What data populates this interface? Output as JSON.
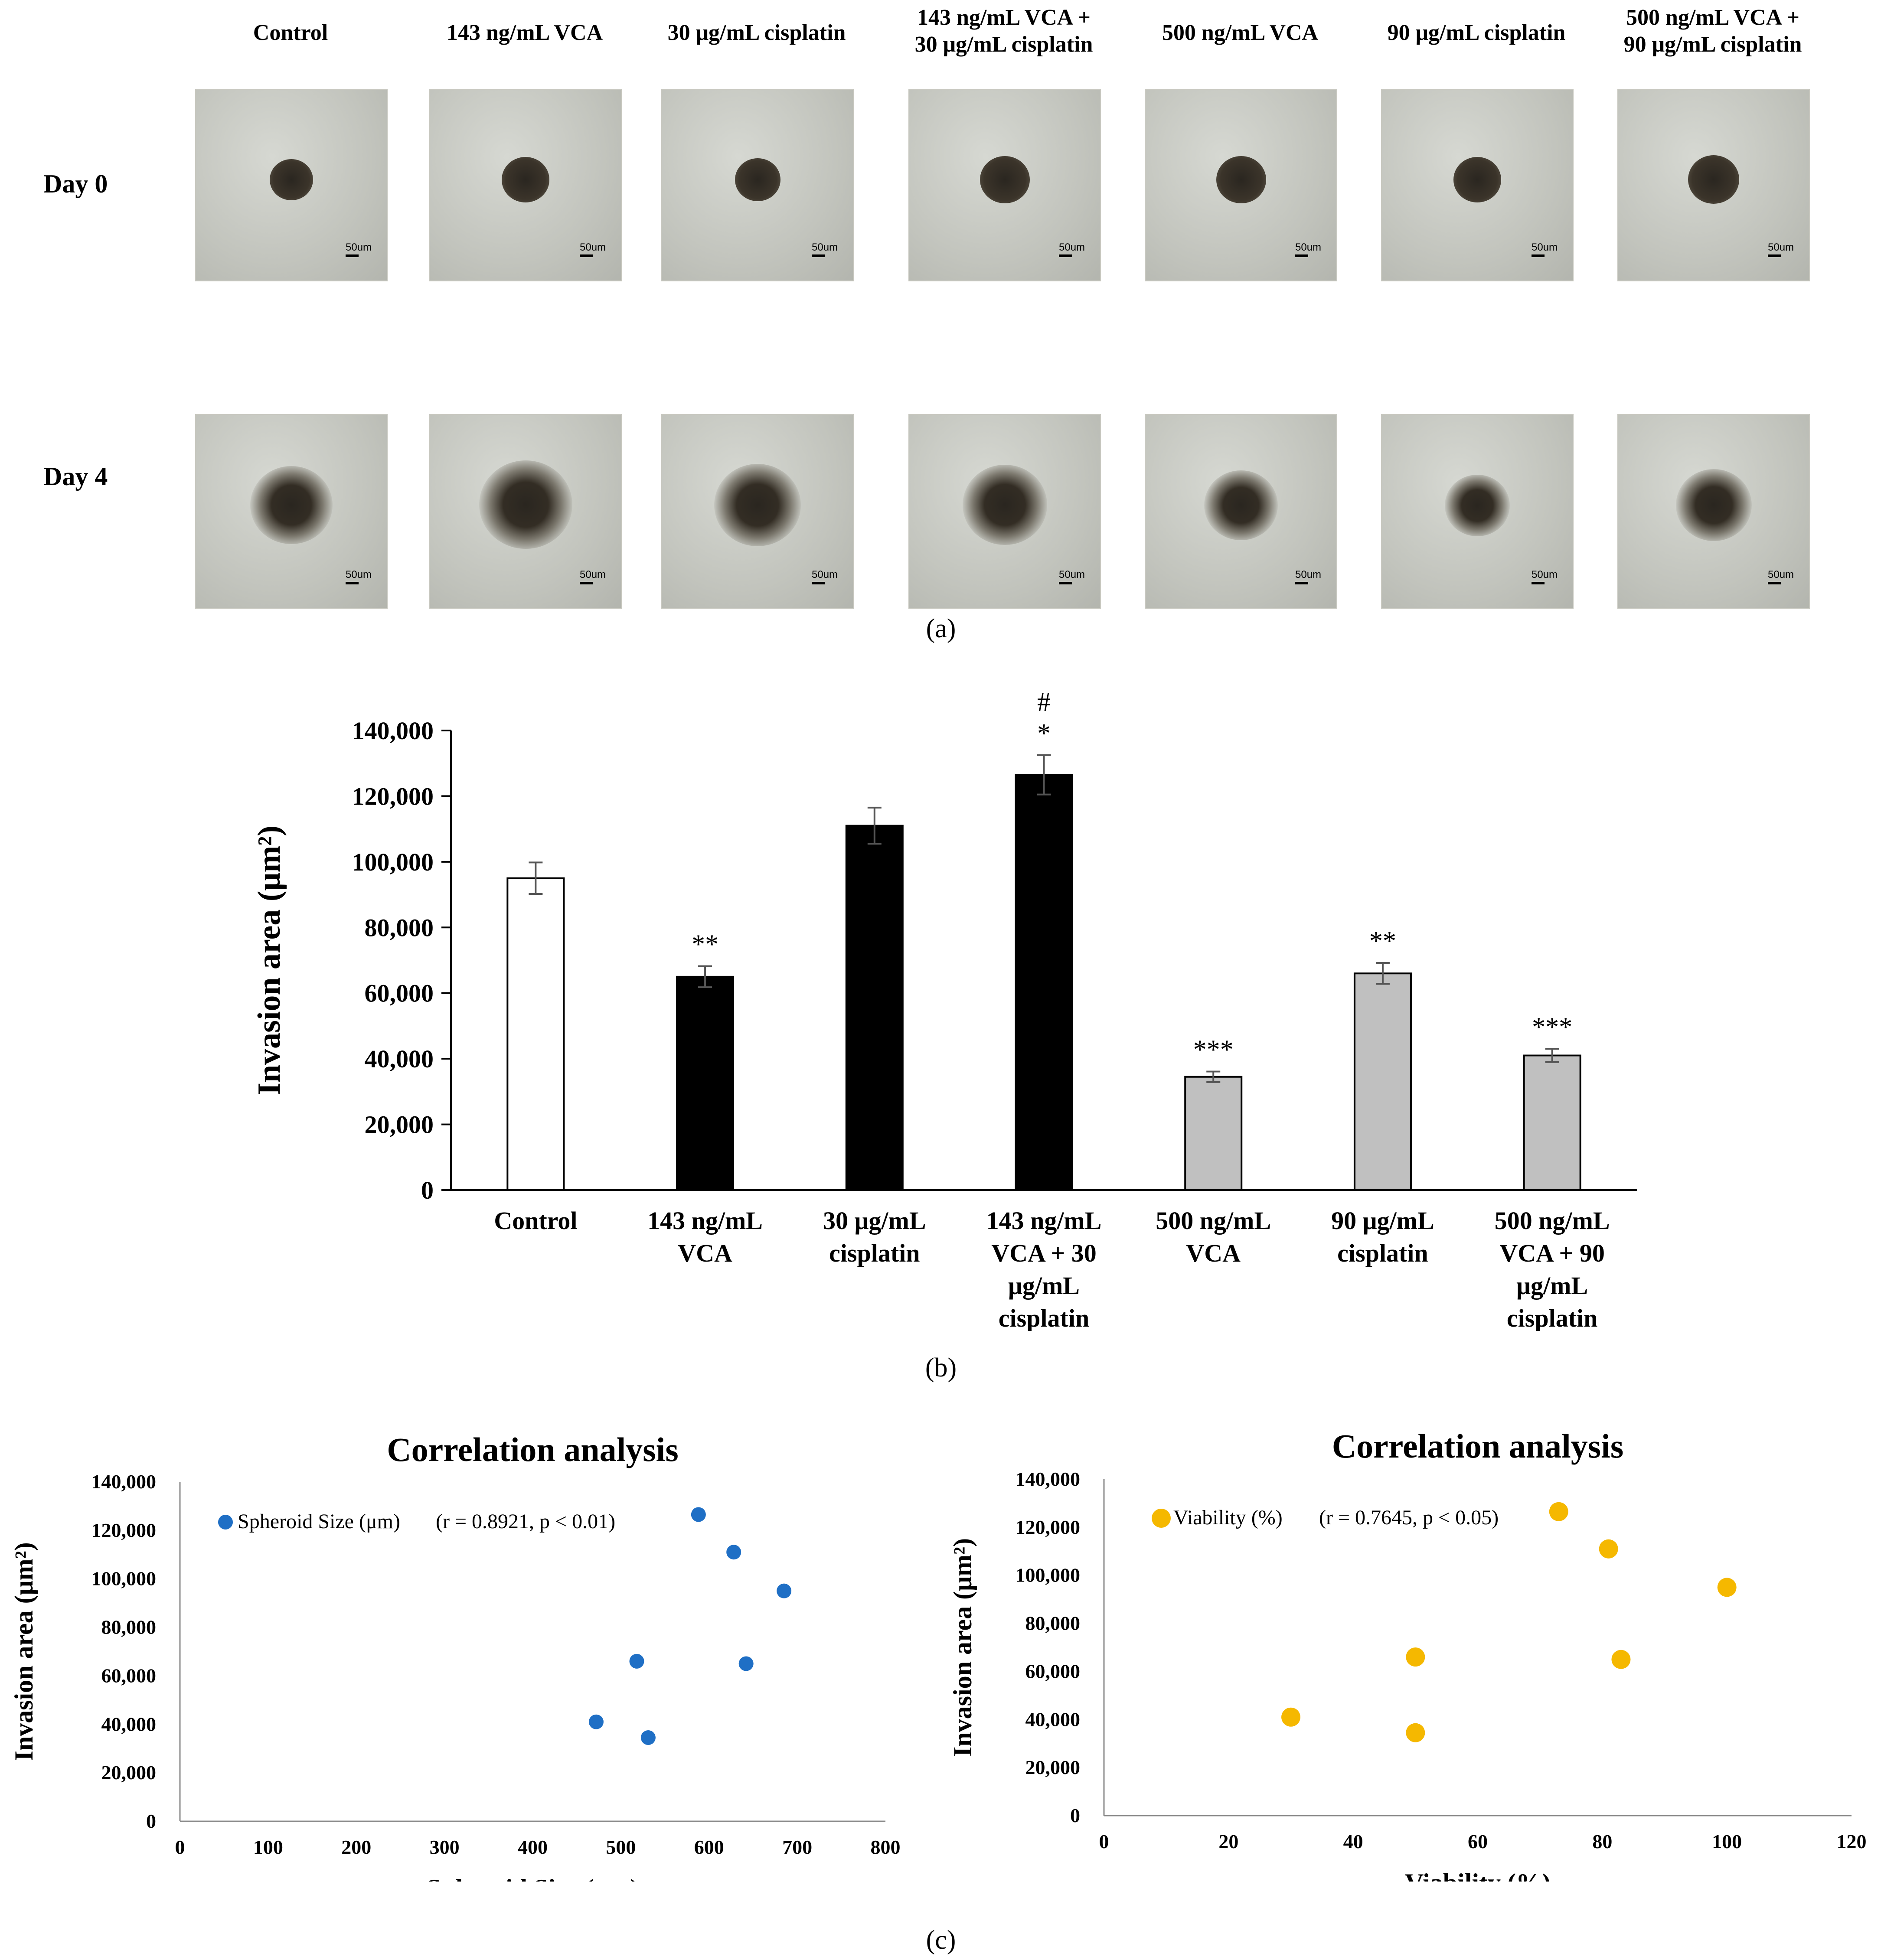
{
  "panel_a": {
    "columns": [
      "Control",
      "143 ng/mL VCA",
      "30 μg/mL cisplatin",
      "143 ng/mL VCA +\n30 μg/mL cisplatin",
      "500 ng/mL VCA",
      "90 μg/mL cisplatin",
      "500 ng/mL VCA +\n90 μg/mL cisplatin"
    ],
    "rows": [
      "Day 0",
      "Day 4"
    ],
    "scale_bar": "50um",
    "label": "(a)"
  },
  "panel_b_label": "(b)",
  "panel_c_label": "(c)",
  "chart_data": [
    {
      "type": "bar",
      "ylabel": "Invasion area (μm²)",
      "ylim": [
        0,
        140000
      ],
      "yticks": [
        "0",
        "20,000",
        "40,000",
        "60,000",
        "80,000",
        "100,000",
        "120,000",
        "140,000"
      ],
      "categories": [
        "Control",
        "143 ng/mL VCA",
        "30 μg/mL cisplatin",
        "143 ng/mL VCA + 30 μg/mL cisplatin",
        "500 ng/mL VCA",
        "90 μg/mL cisplatin",
        "500 ng/mL VCA + 90 μg/mL cisplatin"
      ],
      "values": [
        95000,
        65000,
        111000,
        126500,
        34500,
        66000,
        41000
      ],
      "errors": [
        4800,
        3200,
        5500,
        6000,
        1600,
        3200,
        2000
      ],
      "annotations": [
        "",
        "**",
        "",
        "#\n*",
        "***",
        "**",
        "***"
      ],
      "bar_colors": [
        "#ffffff",
        "#000000",
        "#000000",
        "#000000",
        "#c0c0c0",
        "#c0c0c0",
        "#c0c0c0"
      ]
    },
    {
      "type": "scatter",
      "title": "Correlation analysis",
      "xlabel": "Spheroid Size (μm)",
      "ylabel": "Invasion area (μm²)",
      "xlim": [
        0,
        800
      ],
      "ylim": [
        0,
        140000
      ],
      "xticks": [
        "0",
        "100",
        "200",
        "300",
        "400",
        "500",
        "600",
        "700",
        "800"
      ],
      "yticks": [
        "0",
        "20,000",
        "40,000",
        "60,000",
        "80,000",
        "100,000",
        "120,000",
        "140,000"
      ],
      "legend": "Spheroid Size (μm)",
      "stat": "(r = 0.8921, p < 0.01)",
      "color": "#1f6fc5",
      "x": [
        685,
        642,
        628,
        588,
        531,
        518,
        472
      ],
      "y": [
        95000,
        65000,
        111000,
        126500,
        34500,
        66000,
        41000
      ]
    },
    {
      "type": "scatter",
      "title": "Correlation analysis",
      "xlabel": "Viability (%)",
      "ylabel": "Invasion area (μm²)",
      "xlim": [
        0,
        120
      ],
      "ylim": [
        0,
        140000
      ],
      "xticks": [
        "0",
        "20",
        "40",
        "60",
        "80",
        "100",
        "120"
      ],
      "yticks": [
        "0",
        "20,000",
        "40,000",
        "60,000",
        "80,000",
        "100,000",
        "120,000",
        "140,000"
      ],
      "legend": "Viability (%)",
      "stat": "(r = 0.7645, p < 0.05)",
      "color": "#f5b800",
      "x": [
        100,
        83,
        81,
        73,
        50,
        50,
        30
      ],
      "y": [
        95000,
        65000,
        111000,
        126500,
        34500,
        66000,
        41000
      ]
    }
  ]
}
